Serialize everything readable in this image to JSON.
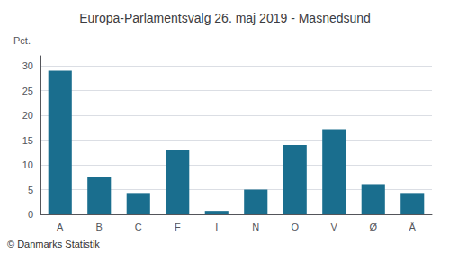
{
  "chart_data": {
    "type": "bar",
    "title": "Europa-Parlamentsvalg 26. maj 2019 - Masnedsund",
    "ylabel": "Pct.",
    "footer": "© Danmarks Statistik",
    "categories": [
      "A",
      "B",
      "C",
      "F",
      "I",
      "N",
      "O",
      "V",
      "Ø",
      "Å"
    ],
    "values": [
      29.0,
      7.5,
      4.3,
      13.0,
      0.7,
      5.0,
      14.0,
      17.2,
      6.1,
      4.3
    ],
    "color": "#1a6e8e",
    "ylim": [
      0,
      32
    ],
    "yticks": [
      0,
      5,
      10,
      15,
      20,
      25,
      30
    ],
    "grid": true
  }
}
